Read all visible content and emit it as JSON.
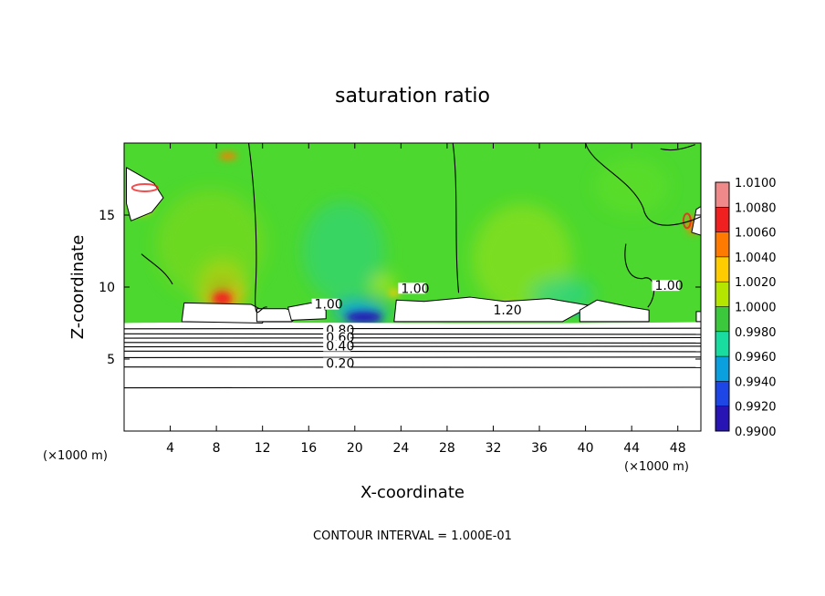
{
  "chart_data": {
    "type": "heatmap",
    "title": "saturation ratio",
    "xlabel": "X-coordinate",
    "ylabel": "Z-coordinate",
    "x_unit_left": "(×1000 m)",
    "x_unit_right": "(×1000 m)",
    "xlim": [
      0,
      50
    ],
    "ylim": [
      0,
      20
    ],
    "x_ticks": [
      4,
      8,
      12,
      16,
      20,
      24,
      28,
      32,
      36,
      40,
      44,
      48
    ],
    "y_ticks": [
      5,
      10,
      15
    ],
    "footer": "CONTOUR INTERVAL = 1.000E-01",
    "colorbar": {
      "levels": [
        "1.0100",
        "1.0080",
        "1.0060",
        "1.0040",
        "1.0020",
        "1.0000",
        "0.9980",
        "0.9960",
        "0.9940",
        "0.9920",
        "0.9900"
      ],
      "colors": [
        "#f08a8a",
        "#f02020",
        "#ff7a00",
        "#ffcc00",
        "#b4e600",
        "#3cc83c",
        "#19dca0",
        "#0aa0e0",
        "#1e46e6",
        "#2814b4",
        "#6a0aa0"
      ]
    },
    "field": {
      "background": "#4cd82e",
      "cloud_free_color": "#ffffff",
      "cloud_base_km": 7.5
    },
    "contour_labels": [
      {
        "text": "1.00",
        "x": 16.5,
        "y": 8.5
      },
      {
        "text": "1.00",
        "x": 24.0,
        "y": 9.6
      },
      {
        "text": "1.00",
        "x": 46.0,
        "y": 9.8
      },
      {
        "text": "1.20",
        "x": 32.0,
        "y": 8.1
      },
      {
        "text": "0.80",
        "x": 17.5,
        "y": 6.7
      },
      {
        "text": "0.60",
        "x": 17.5,
        "y": 6.2
      },
      {
        "text": "0.40",
        "x": 17.5,
        "y": 5.6
      },
      {
        "text": "0.20",
        "x": 17.5,
        "y": 4.4
      }
    ],
    "contour_levels_below_cloud": [
      {
        "value": 0.9,
        "z": 7.1
      },
      {
        "value": 0.8,
        "z": 6.75
      },
      {
        "value": 0.7,
        "z": 6.45
      },
      {
        "value": 0.6,
        "z": 6.15
      },
      {
        "value": 0.5,
        "z": 5.85
      },
      {
        "value": 0.4,
        "z": 5.55
      },
      {
        "value": 0.3,
        "z": 5.1
      },
      {
        "value": 0.2,
        "z": 4.45
      },
      {
        "value": 0.1,
        "z": 3.0
      }
    ]
  }
}
